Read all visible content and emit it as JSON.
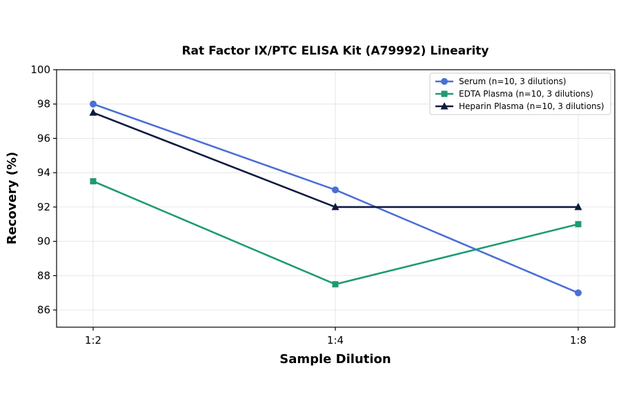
{
  "chart_data": {
    "type": "line",
    "title": "Rat Factor IX/PTC ELISA Kit (A79992) Linearity",
    "xlabel": "Sample Dilution",
    "ylabel": "Recovery (%)",
    "categories": [
      "1:2",
      "1:4",
      "1:8"
    ],
    "ylim": [
      85,
      100
    ],
    "yticks": [
      86,
      88,
      90,
      92,
      94,
      96,
      98,
      100
    ],
    "grid": true,
    "legend_position": "top-right",
    "series": [
      {
        "name": "Serum (n=10, 3 dilutions)",
        "values": [
          98,
          93,
          87
        ],
        "color": "#4a6fd6",
        "marker": "circle"
      },
      {
        "name": "EDTA Plasma (n=10, 3 dilutions)",
        "values": [
          93.5,
          87.5,
          91
        ],
        "color": "#1f9a74",
        "marker": "square"
      },
      {
        "name": "Heparin Plasma (n=10, 3 dilutions)",
        "values": [
          97.5,
          92,
          92
        ],
        "color": "#0d1a40",
        "marker": "triangle"
      }
    ]
  }
}
